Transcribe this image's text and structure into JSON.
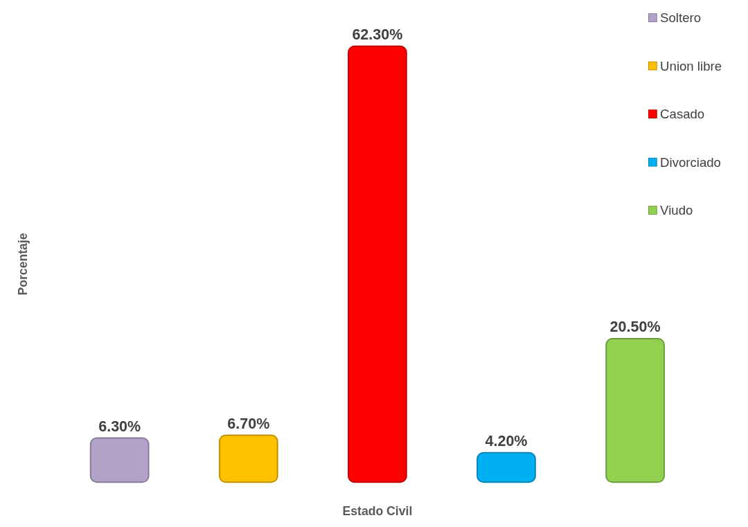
{
  "chart_data": {
    "type": "bar",
    "stacked": true,
    "xlabel": "Estado Civil",
    "ylabel": "Porcentaje",
    "categories": [
      null,
      null,
      null,
      null,
      null
    ],
    "legend": "top right",
    "series": [
      {
        "name": "Soltero",
        "color": "#b3a2c7",
        "values": [
          6.3,
          null,
          null,
          null,
          null
        ],
        "value_labels": [
          "6.30%",
          null,
          null,
          null,
          null
        ]
      },
      {
        "name": "Union libre",
        "color": "#ffc000",
        "values": [
          null,
          6.7,
          null,
          null,
          null
        ],
        "value_labels": [
          null,
          "6.70%",
          null,
          null,
          null
        ]
      },
      {
        "name": "Casado",
        "color": "#ff0000",
        "values": [
          null,
          null,
          62.3,
          null,
          null
        ],
        "value_labels": [
          null,
          null,
          "62.30%",
          null,
          null
        ]
      },
      {
        "name": "Divorciado",
        "color": "#00b0f0",
        "values": [
          null,
          null,
          null,
          4.2,
          null
        ],
        "value_labels": [
          null,
          null,
          null,
          "4.20%",
          null
        ]
      },
      {
        "name": "Viudo",
        "color": "#92d050",
        "values": [
          null,
          null,
          null,
          null,
          20.5
        ],
        "value_labels": [
          null,
          null,
          null,
          null,
          "20.50%"
        ]
      }
    ]
  }
}
